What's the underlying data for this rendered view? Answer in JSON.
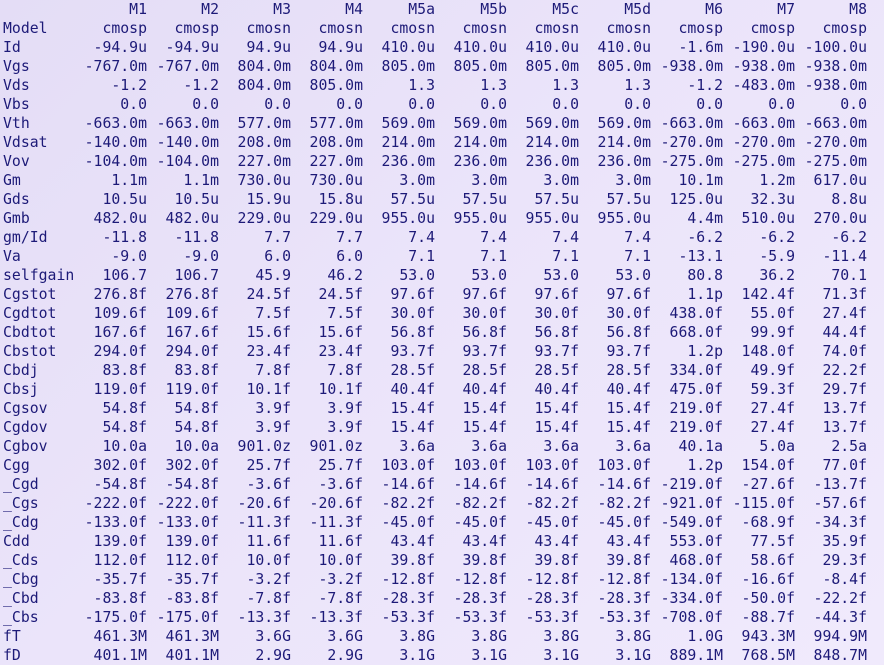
{
  "table": {
    "columns": [
      "M1",
      "M2",
      "M3",
      "M4",
      "M5a",
      "M5b",
      "M5c",
      "M5d",
      "M6",
      "M7",
      "M8"
    ],
    "rows": [
      {
        "label": "Model",
        "values": [
          "cmosp",
          "cmosp",
          "cmosn",
          "cmosn",
          "cmosn",
          "cmosn",
          "cmosn",
          "cmosn",
          "cmosp",
          "cmosp",
          "cmosp"
        ]
      },
      {
        "label": "Id",
        "values": [
          "-94.9u",
          "-94.9u",
          "94.9u",
          "94.9u",
          "410.0u",
          "410.0u",
          "410.0u",
          "410.0u",
          "-1.6m",
          "-190.0u",
          "-100.0u"
        ]
      },
      {
        "label": "Vgs",
        "values": [
          "-767.0m",
          "-767.0m",
          "804.0m",
          "804.0m",
          "805.0m",
          "805.0m",
          "805.0m",
          "805.0m",
          "-938.0m",
          "-938.0m",
          "-938.0m"
        ]
      },
      {
        "label": "Vds",
        "values": [
          "-1.2",
          "-1.2",
          "804.0m",
          "805.0m",
          "1.3",
          "1.3",
          "1.3",
          "1.3",
          "-1.2",
          "-483.0m",
          "-938.0m"
        ]
      },
      {
        "label": "Vbs",
        "values": [
          "0.0",
          "0.0",
          "0.0",
          "0.0",
          "0.0",
          "0.0",
          "0.0",
          "0.0",
          "0.0",
          "0.0",
          "0.0"
        ]
      },
      {
        "label": "Vth",
        "values": [
          "-663.0m",
          "-663.0m",
          "577.0m",
          "577.0m",
          "569.0m",
          "569.0m",
          "569.0m",
          "569.0m",
          "-663.0m",
          "-663.0m",
          "-663.0m"
        ]
      },
      {
        "label": "Vdsat",
        "values": [
          "-140.0m",
          "-140.0m",
          "208.0m",
          "208.0m",
          "214.0m",
          "214.0m",
          "214.0m",
          "214.0m",
          "-270.0m",
          "-270.0m",
          "-270.0m"
        ]
      },
      {
        "label": "Vov",
        "values": [
          "-104.0m",
          "-104.0m",
          "227.0m",
          "227.0m",
          "236.0m",
          "236.0m",
          "236.0m",
          "236.0m",
          "-275.0m",
          "-275.0m",
          "-275.0m"
        ]
      },
      {
        "label": "Gm",
        "values": [
          "1.1m",
          "1.1m",
          "730.0u",
          "730.0u",
          "3.0m",
          "3.0m",
          "3.0m",
          "3.0m",
          "10.1m",
          "1.2m",
          "617.0u"
        ]
      },
      {
        "label": "Gds",
        "values": [
          "10.5u",
          "10.5u",
          "15.9u",
          "15.8u",
          "57.5u",
          "57.5u",
          "57.5u",
          "57.5u",
          "125.0u",
          "32.3u",
          "8.8u"
        ]
      },
      {
        "label": "Gmb",
        "values": [
          "482.0u",
          "482.0u",
          "229.0u",
          "229.0u",
          "955.0u",
          "955.0u",
          "955.0u",
          "955.0u",
          "4.4m",
          "510.0u",
          "270.0u"
        ]
      },
      {
        "label": "gm/Id",
        "values": [
          "-11.8",
          "-11.8",
          "7.7",
          "7.7",
          "7.4",
          "7.4",
          "7.4",
          "7.4",
          "-6.2",
          "-6.2",
          "-6.2"
        ]
      },
      {
        "label": "Va",
        "values": [
          "-9.0",
          "-9.0",
          "6.0",
          "6.0",
          "7.1",
          "7.1",
          "7.1",
          "7.1",
          "-13.1",
          "-5.9",
          "-11.4"
        ]
      },
      {
        "label": "selfgain",
        "values": [
          "106.7",
          "106.7",
          "45.9",
          "46.2",
          "53.0",
          "53.0",
          "53.0",
          "53.0",
          "80.8",
          "36.2",
          "70.1"
        ]
      },
      {
        "label": "Cgstot",
        "values": [
          "276.8f",
          "276.8f",
          "24.5f",
          "24.5f",
          "97.6f",
          "97.6f",
          "97.6f",
          "97.6f",
          "1.1p",
          "142.4f",
          "71.3f"
        ]
      },
      {
        "label": "Cgdtot",
        "values": [
          "109.6f",
          "109.6f",
          "7.5f",
          "7.5f",
          "30.0f",
          "30.0f",
          "30.0f",
          "30.0f",
          "438.0f",
          "55.0f",
          "27.4f"
        ]
      },
      {
        "label": "Cbdtot",
        "values": [
          "167.6f",
          "167.6f",
          "15.6f",
          "15.6f",
          "56.8f",
          "56.8f",
          "56.8f",
          "56.8f",
          "668.0f",
          "99.9f",
          "44.4f"
        ]
      },
      {
        "label": "Cbstot",
        "values": [
          "294.0f",
          "294.0f",
          "23.4f",
          "23.4f",
          "93.7f",
          "93.7f",
          "93.7f",
          "93.7f",
          "1.2p",
          "148.0f",
          "74.0f"
        ]
      },
      {
        "label": "Cbdj",
        "values": [
          "83.8f",
          "83.8f",
          "7.8f",
          "7.8f",
          "28.5f",
          "28.5f",
          "28.5f",
          "28.5f",
          "334.0f",
          "49.9f",
          "22.2f"
        ]
      },
      {
        "label": "Cbsj",
        "values": [
          "119.0f",
          "119.0f",
          "10.1f",
          "10.1f",
          "40.4f",
          "40.4f",
          "40.4f",
          "40.4f",
          "475.0f",
          "59.3f",
          "29.7f"
        ]
      },
      {
        "label": "Cgsov",
        "values": [
          "54.8f",
          "54.8f",
          "3.9f",
          "3.9f",
          "15.4f",
          "15.4f",
          "15.4f",
          "15.4f",
          "219.0f",
          "27.4f",
          "13.7f"
        ]
      },
      {
        "label": "Cgdov",
        "values": [
          "54.8f",
          "54.8f",
          "3.9f",
          "3.9f",
          "15.4f",
          "15.4f",
          "15.4f",
          "15.4f",
          "219.0f",
          "27.4f",
          "13.7f"
        ]
      },
      {
        "label": "Cgbov",
        "values": [
          "10.0a",
          "10.0a",
          "901.0z",
          "901.0z",
          "3.6a",
          "3.6a",
          "3.6a",
          "3.6a",
          "40.1a",
          "5.0a",
          "2.5a"
        ]
      },
      {
        "label": "Cgg",
        "values": [
          "302.0f",
          "302.0f",
          "25.7f",
          "25.7f",
          "103.0f",
          "103.0f",
          "103.0f",
          "103.0f",
          "1.2p",
          "154.0f",
          "77.0f"
        ]
      },
      {
        "label": "_Cgd",
        "values": [
          "-54.8f",
          "-54.8f",
          "-3.6f",
          "-3.6f",
          "-14.6f",
          "-14.6f",
          "-14.6f",
          "-14.6f",
          "-219.0f",
          "-27.6f",
          "-13.7f"
        ]
      },
      {
        "label": "_Cgs",
        "values": [
          "-222.0f",
          "-222.0f",
          "-20.6f",
          "-20.6f",
          "-82.2f",
          "-82.2f",
          "-82.2f",
          "-82.2f",
          "-921.0f",
          "-115.0f",
          "-57.6f"
        ]
      },
      {
        "label": "_Cdg",
        "values": [
          "-133.0f",
          "-133.0f",
          "-11.3f",
          "-11.3f",
          "-45.0f",
          "-45.0f",
          "-45.0f",
          "-45.0f",
          "-549.0f",
          "-68.9f",
          "-34.3f"
        ]
      },
      {
        "label": "Cdd",
        "values": [
          "139.0f",
          "139.0f",
          "11.6f",
          "11.6f",
          "43.4f",
          "43.4f",
          "43.4f",
          "43.4f",
          "553.0f",
          "77.5f",
          "35.9f"
        ]
      },
      {
        "label": "_Cds",
        "values": [
          "112.0f",
          "112.0f",
          "10.0f",
          "10.0f",
          "39.8f",
          "39.8f",
          "39.8f",
          "39.8f",
          "468.0f",
          "58.6f",
          "29.3f"
        ]
      },
      {
        "label": "_Cbg",
        "values": [
          "-35.7f",
          "-35.7f",
          "-3.2f",
          "-3.2f",
          "-12.8f",
          "-12.8f",
          "-12.8f",
          "-12.8f",
          "-134.0f",
          "-16.6f",
          "-8.4f"
        ]
      },
      {
        "label": "_Cbd",
        "values": [
          "-83.8f",
          "-83.8f",
          "-7.8f",
          "-7.8f",
          "-28.3f",
          "-28.3f",
          "-28.3f",
          "-28.3f",
          "-334.0f",
          "-50.0f",
          "-22.2f"
        ]
      },
      {
        "label": "_Cbs",
        "values": [
          "-175.0f",
          "-175.0f",
          "-13.3f",
          "-13.3f",
          "-53.3f",
          "-53.3f",
          "-53.3f",
          "-53.3f",
          "-708.0f",
          "-88.7f",
          "-44.3f"
        ]
      },
      {
        "label": "fT",
        "values": [
          "461.3M",
          "461.3M",
          "3.6G",
          "3.6G",
          "3.8G",
          "3.8G",
          "3.8G",
          "3.8G",
          "1.0G",
          "943.3M",
          "994.9M"
        ]
      },
      {
        "label": "fD",
        "values": [
          "401.1M",
          "401.1M",
          "2.9G",
          "2.9G",
          "3.1G",
          "3.1G",
          "3.1G",
          "3.1G",
          "889.1M",
          "768.5M",
          "848.7M"
        ]
      }
    ]
  },
  "colors": {
    "text": "#1d1a78",
    "background": "#ebe4fa"
  }
}
